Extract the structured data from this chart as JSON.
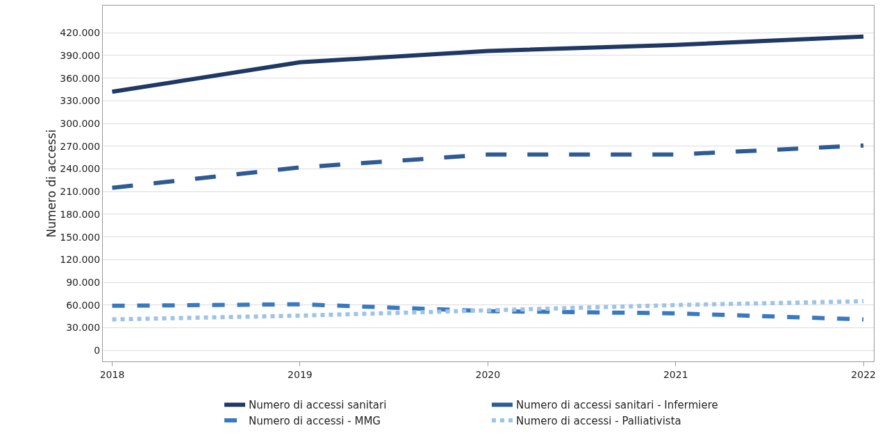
{
  "chart_data": {
    "type": "line",
    "ylabel": "Numero di accessi",
    "x": [
      2018,
      2019,
      2020,
      2021,
      2022
    ],
    "xlim": [
      2017.95,
      2022.055
    ],
    "xticks": [
      2018,
      2019,
      2020,
      2021,
      2022
    ],
    "ylim": [
      -14500,
      456000
    ],
    "yticks": [
      {
        "value": 0,
        "label": "0"
      },
      {
        "value": 30000,
        "label": "30.000"
      },
      {
        "value": 60000,
        "label": "60.000"
      },
      {
        "value": 90000,
        "label": "90.000"
      },
      {
        "value": 120000,
        "label": "120.000"
      },
      {
        "value": 150000,
        "label": "150.000"
      },
      {
        "value": 180000,
        "label": "180.000"
      },
      {
        "value": 210000,
        "label": "210.000"
      },
      {
        "value": 240000,
        "label": "240.000"
      },
      {
        "value": 270000,
        "label": "270.000"
      },
      {
        "value": 300000,
        "label": "300.000"
      },
      {
        "value": 330000,
        "label": "330.000"
      },
      {
        "value": 360000,
        "label": "360.000"
      },
      {
        "value": 390000,
        "label": "390.000"
      },
      {
        "value": 420000,
        "label": "420.000"
      }
    ],
    "grid": "y",
    "legend": "bottom",
    "marker": "none",
    "series": [
      {
        "name": "Numero di accessi sanitari",
        "color": "#1f3864",
        "line_style": "solid",
        "values": [
          342000,
          381000,
          396000,
          404000,
          415000
        ]
      },
      {
        "name": "Numero di accessi sanitari - Infermiere",
        "color": "#2e5b93",
        "line_style": "longdash",
        "values": [
          215000,
          242000,
          259000,
          259000,
          271000
        ]
      },
      {
        "name": "Numero di accessi - MMG",
        "color": "#3a78c0",
        "line_style": "dashed",
        "values": [
          59000,
          61000,
          52000,
          49000,
          41000
        ]
      },
      {
        "name": "Numero di accessi - Palliativista",
        "color": "#9dc3e6",
        "line_style": "dotted",
        "values": [
          41000,
          46000,
          53000,
          60000,
          65000
        ]
      }
    ]
  }
}
